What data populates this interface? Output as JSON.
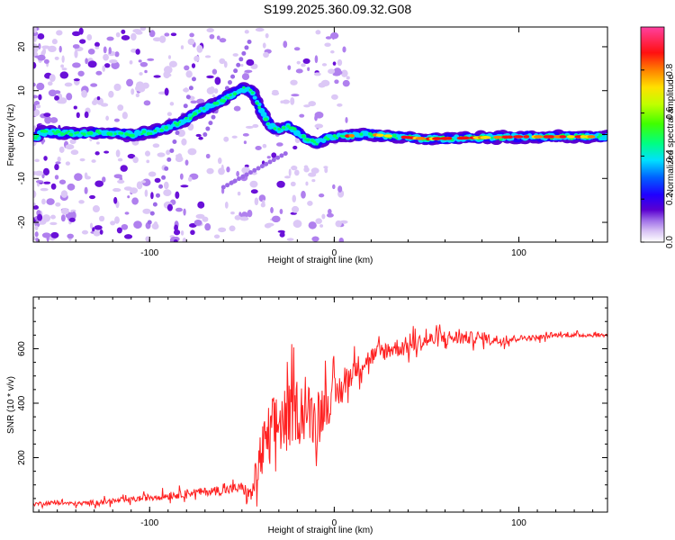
{
  "title": "S199.2025.360.09.32.G08",
  "chart_data": [
    {
      "type": "heatmap",
      "xlabel": "Height of straight line (km)",
      "ylabel": "Frequency (Hz)",
      "xlim": [
        -163,
        148
      ],
      "ylim": [
        -24.5,
        24.5
      ],
      "xticks": [
        -100,
        0,
        100
      ],
      "yticks": [
        -20,
        -10,
        0,
        10,
        20
      ],
      "colorbar": {
        "label": "Normalized spectral amplitude",
        "range": [
          0,
          1
        ],
        "ticks": [
          0.0,
          0.2,
          0.4,
          0.6,
          0.8
        ],
        "colors": [
          "#ffffff",
          "#c8a0f0",
          "#5a00c8",
          "#0000ff",
          "#00ffff",
          "#00ff00",
          "#ffff00",
          "#ff0000",
          "#ff00a0"
        ]
      },
      "ridge": {
        "description_points_x_km": [
          -160,
          -140,
          -120,
          -110,
          -100,
          -90,
          -80,
          -70,
          -60,
          -50,
          -45,
          -40,
          -35,
          -30,
          -25,
          -20,
          -15,
          -10,
          -5,
          0,
          20,
          50,
          100,
          148
        ],
        "frequency_hz": [
          0.5,
          0.3,
          0.5,
          0.0,
          0.5,
          1.5,
          3.5,
          6.0,
          8.0,
          10.5,
          10.0,
          6.0,
          2.0,
          1.0,
          2.0,
          0.5,
          -1.0,
          -2.0,
          -1.0,
          -0.5,
          0.0,
          -1.0,
          -0.5,
          -0.5
        ]
      }
    },
    {
      "type": "line",
      "xlabel": "Height of straight line (km)",
      "ylabel": "SNR (10 * v/v)",
      "xlim": [
        -163,
        148
      ],
      "ylim": [
        0,
        790
      ],
      "xticks": [
        -100,
        0,
        100
      ],
      "yticks": [
        200,
        400,
        600
      ],
      "color": "#ff2020",
      "series": [
        {
          "name": "SNR",
          "x": [
            -163,
            -150,
            -140,
            -130,
            -120,
            -110,
            -100,
            -90,
            -80,
            -70,
            -60,
            -50,
            -45,
            -40,
            -35,
            -30,
            -25,
            -20,
            -15,
            -10,
            -5,
            0,
            5,
            10,
            20,
            30,
            40,
            50,
            60,
            70,
            80,
            90,
            100,
            110,
            120,
            130,
            140,
            148
          ],
          "values": [
            30,
            35,
            30,
            35,
            40,
            45,
            55,
            60,
            70,
            75,
            80,
            90,
            60,
            200,
            280,
            330,
            350,
            380,
            370,
            340,
            400,
            420,
            460,
            520,
            570,
            600,
            610,
            630,
            640,
            640,
            640,
            630,
            640,
            640,
            650,
            650,
            650,
            650
          ],
          "noise_amplitude": [
            15,
            15,
            15,
            20,
            20,
            20,
            25,
            30,
            30,
            30,
            35,
            40,
            60,
            200,
            260,
            250,
            240,
            230,
            220,
            200,
            180,
            150,
            120,
            90,
            70,
            70,
            70,
            60,
            60,
            50,
            40,
            40,
            20,
            20,
            15,
            15,
            15,
            15
          ]
        }
      ]
    }
  ]
}
